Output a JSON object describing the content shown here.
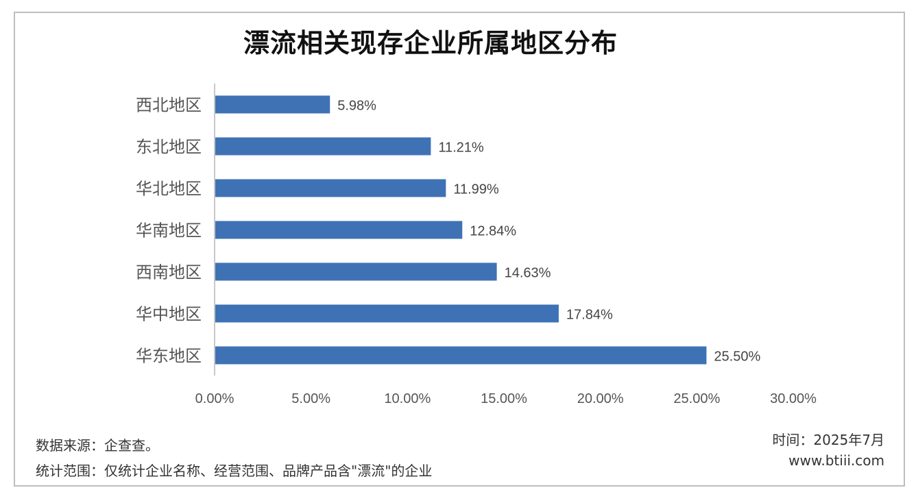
{
  "chart_data": {
    "type": "bar",
    "orientation": "horizontal",
    "title": "漂流相关现存企业所属地区分布",
    "categories": [
      "西北地区",
      "东北地区",
      "华北地区",
      "华南地区",
      "西南地区",
      "华中地区",
      "华东地区"
    ],
    "values": [
      5.98,
      11.21,
      11.99,
      12.84,
      14.63,
      17.84,
      25.5
    ],
    "value_labels": [
      "5.98%",
      "11.21%",
      "11.99%",
      "12.84%",
      "14.63%",
      "17.84%",
      "25.50%"
    ],
    "xlim": [
      0,
      30
    ],
    "x_ticks": [
      "0.00%",
      "5.00%",
      "10.00%",
      "15.00%",
      "20.00%",
      "25.00%",
      "30.00%"
    ],
    "bar_color": "#3f72b5",
    "grid": false,
    "legend": "none"
  },
  "footer": {
    "source": "数据来源：企查查。",
    "scope": "统计范围：仅统计企业名称、经营范围、品牌产品含\"漂流\"的企业",
    "time": "时间：2025年7月",
    "website": "www.btiii.com"
  }
}
